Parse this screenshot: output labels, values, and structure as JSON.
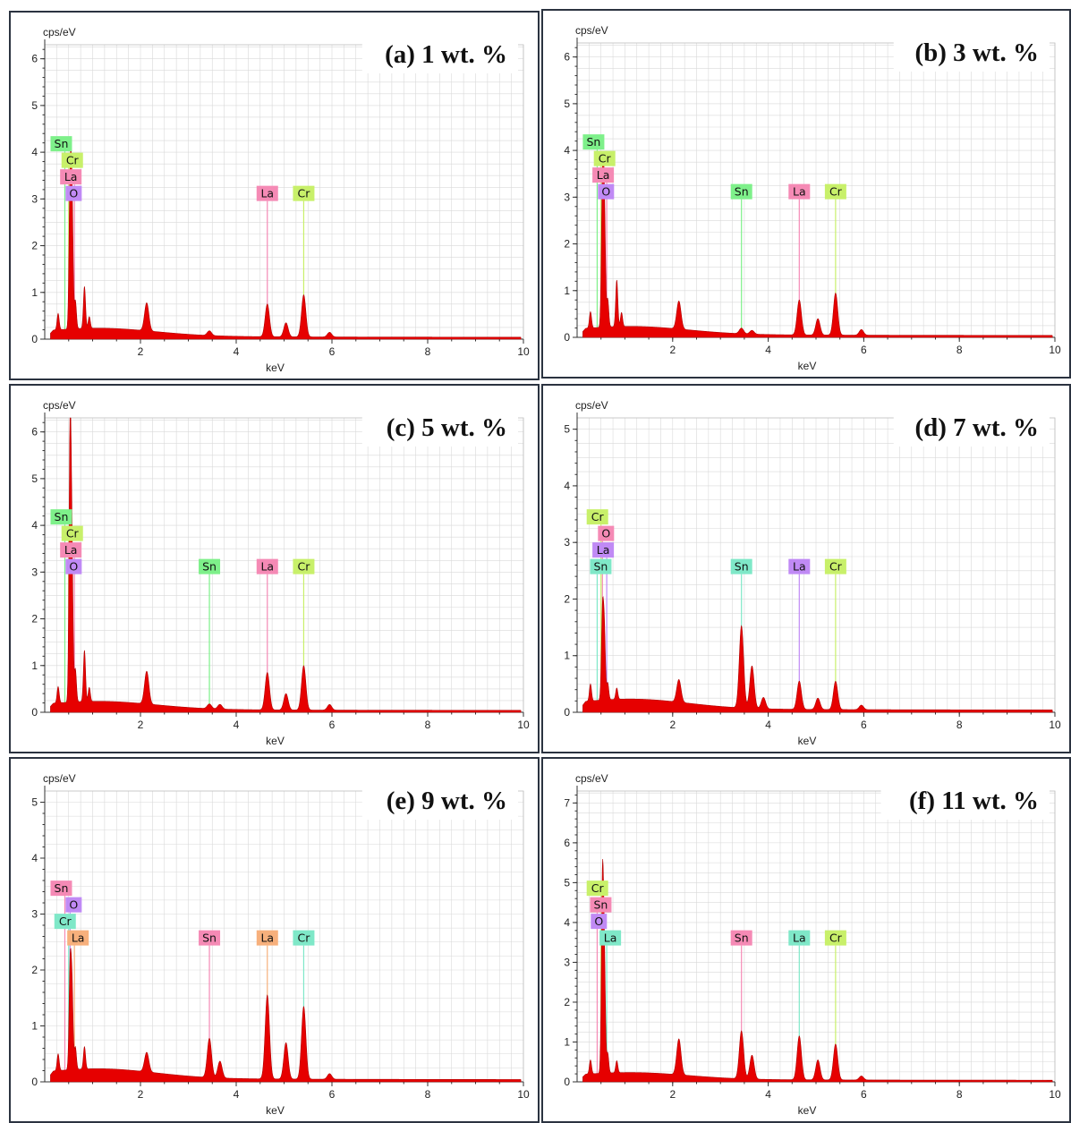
{
  "colors": {
    "spectrum": "#e60000",
    "grid": "#d9d9d9",
    "axis": "#333333",
    "frame": "#2b3340",
    "element": {
      "green": "#7ef08a",
      "lime": "#c8f06a",
      "pink": "#f58ab5",
      "violet": "#c08af5",
      "teal": "#7fe8c8",
      "orange": "#f7b07c"
    }
  },
  "chart_data": [
    {
      "type": "area",
      "title": "(a) 1 wt. %",
      "ylabel": "cps/eV",
      "xlabel": "keV",
      "xlim": [
        0,
        10
      ],
      "ylim": [
        0,
        6.3
      ],
      "x_ticks": [
        2,
        4,
        6,
        8,
        10
      ],
      "y_ticks": [
        0,
        1,
        2,
        3,
        4,
        5,
        6
      ],
      "peaks": [
        [
          0.28,
          0.35
        ],
        [
          0.53,
          3.1
        ],
        [
          0.57,
          2.7
        ],
        [
          0.64,
          0.6
        ],
        [
          0.83,
          0.9
        ],
        [
          0.93,
          0.25
        ],
        [
          2.13,
          0.6
        ],
        [
          3.44,
          0.1
        ],
        [
          4.65,
          0.7
        ],
        [
          5.04,
          0.3
        ],
        [
          5.41,
          0.9
        ],
        [
          5.95,
          0.1
        ]
      ],
      "element_lines": [
        {
          "label": "Sn",
          "color": "green",
          "x": 0.42,
          "stack": 4
        },
        {
          "label": "Cr",
          "color": "lime",
          "x": 0.5,
          "stack": 3
        },
        {
          "label": "La",
          "color": "pink",
          "x": 0.62,
          "stack": 2
        },
        {
          "label": "O",
          "color": "violet",
          "x": 0.53,
          "stack": 1
        },
        {
          "label": "La",
          "color": "pink",
          "x": 4.65,
          "stack": 1
        },
        {
          "label": "Cr",
          "color": "lime",
          "x": 5.41,
          "stack": 1
        }
      ]
    },
    {
      "type": "area",
      "title": "(b) 3 wt. %",
      "ylabel": "cps/eV",
      "xlabel": "keV",
      "xlim": [
        0,
        10
      ],
      "ylim": [
        0,
        6.3
      ],
      "x_ticks": [
        2,
        4,
        6,
        8,
        10
      ],
      "y_ticks": [
        0,
        1,
        2,
        3,
        4,
        5,
        6
      ],
      "peaks": [
        [
          0.28,
          0.35
        ],
        [
          0.53,
          3.0
        ],
        [
          0.57,
          2.6
        ],
        [
          0.64,
          0.6
        ],
        [
          0.83,
          1.0
        ],
        [
          0.93,
          0.3
        ],
        [
          2.13,
          0.6
        ],
        [
          3.44,
          0.12
        ],
        [
          3.66,
          0.08
        ],
        [
          4.65,
          0.75
        ],
        [
          5.04,
          0.35
        ],
        [
          5.41,
          0.9
        ],
        [
          5.95,
          0.12
        ]
      ],
      "element_lines": [
        {
          "label": "Sn",
          "color": "green",
          "x": 0.42,
          "stack": 4
        },
        {
          "label": "Cr",
          "color": "lime",
          "x": 0.5,
          "stack": 3
        },
        {
          "label": "La",
          "color": "pink",
          "x": 0.62,
          "stack": 2
        },
        {
          "label": "O",
          "color": "violet",
          "x": 0.53,
          "stack": 1
        },
        {
          "label": "Sn",
          "color": "green",
          "x": 3.44,
          "stack": 1
        },
        {
          "label": "La",
          "color": "pink",
          "x": 4.65,
          "stack": 1
        },
        {
          "label": "Cr",
          "color": "lime",
          "x": 5.41,
          "stack": 1
        }
      ]
    },
    {
      "type": "area",
      "title": "(c) 5 wt. %",
      "ylabel": "cps/eV",
      "xlabel": "keV",
      "xlim": [
        0,
        10
      ],
      "ylim": [
        0,
        6.3
      ],
      "x_ticks": [
        2,
        4,
        6,
        8,
        10
      ],
      "y_ticks": [
        0,
        1,
        2,
        3,
        4,
        5,
        6
      ],
      "peaks": [
        [
          0.28,
          0.35
        ],
        [
          0.53,
          5.9
        ],
        [
          0.57,
          2.8
        ],
        [
          0.64,
          0.7
        ],
        [
          0.83,
          1.1
        ],
        [
          0.93,
          0.3
        ],
        [
          2.13,
          0.7
        ],
        [
          3.44,
          0.1
        ],
        [
          3.66,
          0.1
        ],
        [
          4.65,
          0.8
        ],
        [
          5.04,
          0.35
        ],
        [
          5.41,
          0.95
        ],
        [
          5.95,
          0.12
        ]
      ],
      "element_lines": [
        {
          "label": "Sn",
          "color": "green",
          "x": 0.42,
          "stack": 4
        },
        {
          "label": "Cr",
          "color": "lime",
          "x": 0.5,
          "stack": 3
        },
        {
          "label": "La",
          "color": "pink",
          "x": 0.62,
          "stack": 2
        },
        {
          "label": "O",
          "color": "violet",
          "x": 0.53,
          "stack": 1
        },
        {
          "label": "Sn",
          "color": "green",
          "x": 3.44,
          "stack": 1
        },
        {
          "label": "La",
          "color": "pink",
          "x": 4.65,
          "stack": 1
        },
        {
          "label": "Cr",
          "color": "lime",
          "x": 5.41,
          "stack": 1
        }
      ]
    },
    {
      "type": "area",
      "title": "(d) 7 wt. %",
      "ylabel": "cps/eV",
      "xlabel": "keV",
      "xlim": [
        0,
        10
      ],
      "ylim": [
        0,
        5.2
      ],
      "x_ticks": [
        2,
        4,
        6,
        8,
        10
      ],
      "y_ticks": [
        0,
        1,
        2,
        3,
        4,
        5
      ],
      "peaks": [
        [
          0.28,
          0.3
        ],
        [
          0.53,
          1.5
        ],
        [
          0.57,
          1.2
        ],
        [
          0.64,
          0.3
        ],
        [
          0.83,
          0.2
        ],
        [
          2.13,
          0.4
        ],
        [
          3.44,
          1.45
        ],
        [
          3.66,
          0.75
        ],
        [
          3.9,
          0.2
        ],
        [
          4.65,
          0.5
        ],
        [
          5.04,
          0.2
        ],
        [
          5.41,
          0.5
        ],
        [
          5.95,
          0.08
        ]
      ],
      "element_lines": [
        {
          "label": "Cr",
          "color": "lime",
          "x": 0.5,
          "stack": 4
        },
        {
          "label": "O",
          "color": "pink",
          "x": 0.53,
          "stack": 3
        },
        {
          "label": "La",
          "color": "violet",
          "x": 0.62,
          "stack": 2
        },
        {
          "label": "Sn",
          "color": "teal",
          "x": 0.42,
          "stack": 1
        },
        {
          "label": "Sn",
          "color": "teal",
          "x": 3.44,
          "stack": 1
        },
        {
          "label": "La",
          "color": "violet",
          "x": 4.65,
          "stack": 1
        },
        {
          "label": "Cr",
          "color": "lime",
          "x": 5.41,
          "stack": 1
        }
      ]
    },
    {
      "type": "area",
      "title": "(e) 9 wt. %",
      "ylabel": "cps/eV",
      "xlabel": "keV",
      "xlim": [
        0,
        10
      ],
      "ylim": [
        0,
        5.2
      ],
      "x_ticks": [
        2,
        4,
        6,
        8,
        10
      ],
      "y_ticks": [
        0,
        1,
        2,
        3,
        4,
        5
      ],
      "peaks": [
        [
          0.28,
          0.3
        ],
        [
          0.53,
          1.8
        ],
        [
          0.57,
          1.4
        ],
        [
          0.64,
          0.4
        ],
        [
          0.83,
          0.4
        ],
        [
          2.13,
          0.35
        ],
        [
          3.44,
          0.7
        ],
        [
          3.66,
          0.3
        ],
        [
          4.65,
          1.5
        ],
        [
          5.04,
          0.65
        ],
        [
          5.41,
          1.3
        ],
        [
          5.95,
          0.1
        ]
      ],
      "element_lines": [
        {
          "label": "Sn",
          "color": "pink",
          "x": 0.42,
          "stack": 4
        },
        {
          "label": "O",
          "color": "violet",
          "x": 0.53,
          "stack": 3
        },
        {
          "label": "Cr",
          "color": "teal",
          "x": 0.5,
          "stack": 2
        },
        {
          "label": "La",
          "color": "orange",
          "x": 0.62,
          "stack": 1
        },
        {
          "label": "Sn",
          "color": "pink",
          "x": 3.44,
          "stack": 1
        },
        {
          "label": "La",
          "color": "orange",
          "x": 4.65,
          "stack": 1
        },
        {
          "label": "Cr",
          "color": "teal",
          "x": 5.41,
          "stack": 1
        }
      ]
    },
    {
      "type": "area",
      "title": "(f) 11 wt. %",
      "ylabel": "cps/eV",
      "xlabel": "keV",
      "xlim": [
        0,
        10
      ],
      "ylim": [
        0,
        7.3
      ],
      "x_ticks": [
        2,
        4,
        6,
        8,
        10
      ],
      "y_ticks": [
        0,
        1,
        2,
        3,
        4,
        5,
        6,
        7
      ],
      "peaks": [
        [
          0.28,
          0.35
        ],
        [
          0.53,
          4.7
        ],
        [
          0.57,
          2.8
        ],
        [
          0.64,
          0.5
        ],
        [
          0.83,
          0.3
        ],
        [
          2.13,
          0.9
        ],
        [
          3.44,
          1.2
        ],
        [
          3.66,
          0.6
        ],
        [
          4.65,
          1.1
        ],
        [
          5.04,
          0.5
        ],
        [
          5.41,
          0.9
        ],
        [
          5.95,
          0.1
        ]
      ],
      "element_lines": [
        {
          "label": "Cr",
          "color": "lime",
          "x": 0.5,
          "stack": 4
        },
        {
          "label": "Sn",
          "color": "pink",
          "x": 0.42,
          "stack": 3
        },
        {
          "label": "O",
          "color": "violet",
          "x": 0.53,
          "stack": 2
        },
        {
          "label": "La",
          "color": "teal",
          "x": 0.62,
          "stack": 1
        },
        {
          "label": "Sn",
          "color": "pink",
          "x": 3.44,
          "stack": 1
        },
        {
          "label": "La",
          "color": "teal",
          "x": 4.65,
          "stack": 1
        },
        {
          "label": "Cr",
          "color": "lime",
          "x": 5.41,
          "stack": 1
        }
      ]
    }
  ]
}
